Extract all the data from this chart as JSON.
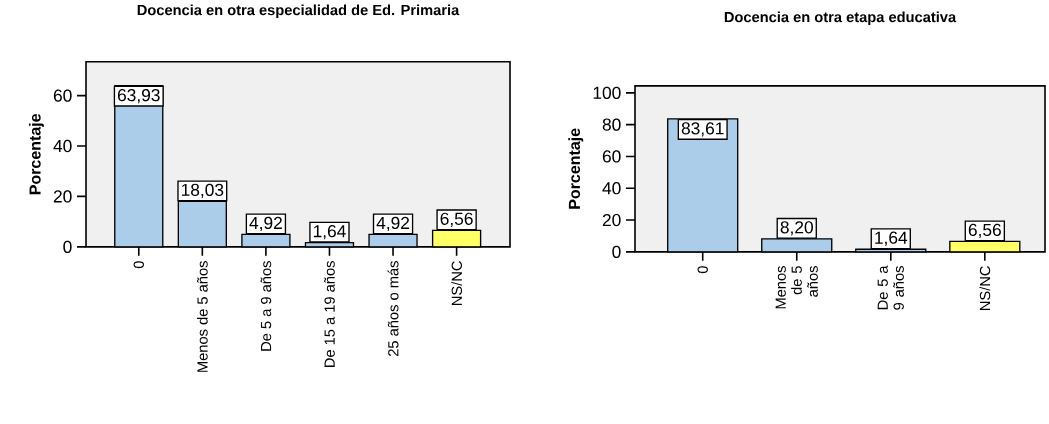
{
  "chart_data": [
    {
      "type": "bar",
      "title": "Docencia en otra especialidad de Ed. Primaria",
      "ylabel": "Porcentaje",
      "categories": [
        "0",
        "Menos de 5 años",
        "De 5 a 9 años",
        "De 15 a 19 años",
        "25 años o más",
        "NS/NC"
      ],
      "values": [
        63.93,
        18.03,
        4.92,
        1.64,
        4.92,
        6.56
      ],
      "colors": [
        "#abcdea",
        "#abcdea",
        "#abcdea",
        "#abcdea",
        "#abcdea",
        "#ffff66"
      ],
      "value_labels": [
        "63,93",
        "18,03",
        "4,92",
        "1,64",
        "4,92",
        "6,56"
      ],
      "ylim": [
        0,
        73.4
      ],
      "yticks": [
        0,
        20,
        40,
        60
      ]
    },
    {
      "type": "bar",
      "title": "Docencia en otra etapa educativa",
      "ylabel": "Porcentaje",
      "categories": [
        "0",
        "Menos de 5 años",
        "De 5 a 9 años",
        "NS/NC"
      ],
      "values": [
        83.61,
        8.2,
        1.64,
        6.56
      ],
      "colors": [
        "#abcdea",
        "#abcdea",
        "#abcdea",
        "#ffff66"
      ],
      "value_labels": [
        "83,61",
        "8,20",
        "1,64",
        "6,56"
      ],
      "ylim": [
        0,
        104.4
      ],
      "yticks": [
        0,
        20,
        40,
        60,
        80,
        100
      ]
    }
  ]
}
